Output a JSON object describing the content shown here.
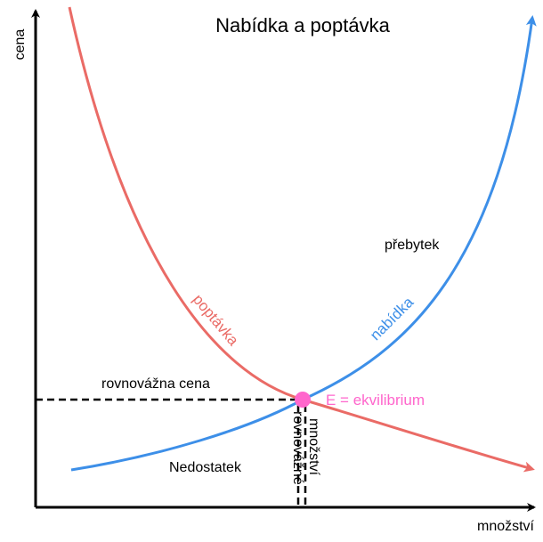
{
  "title": "Nabídka a poptávka",
  "axes": {
    "y": "cena",
    "x": "množství"
  },
  "curves": {
    "demand": "poptávka",
    "supply": "nabídka"
  },
  "regions": {
    "surplus": "přebytek",
    "shortage": "Nedostatek"
  },
  "equilibrium": {
    "point": "E = ekvilibrium",
    "price": "rovnovážna cena",
    "quantity": [
      "rovnovážné",
      "množství"
    ]
  }
}
